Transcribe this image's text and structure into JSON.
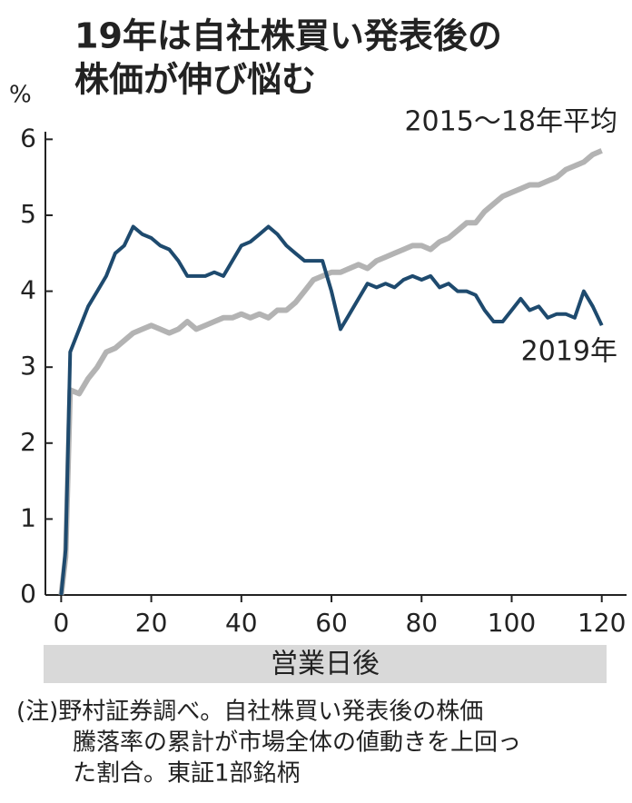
{
  "chart_data": {
    "type": "line",
    "title": [
      "19年は自社株買い発表後の",
      "株価が伸び悩む"
    ],
    "y_label": "%",
    "x_label": "営業日後",
    "note": [
      "(注)野村証券調べ。自社株買い発表後の株価",
      "騰落率の累計が市場全体の値動きを上回っ",
      "た割合。東証1部銘柄"
    ],
    "x": [
      0,
      1,
      2,
      4,
      6,
      8,
      10,
      12,
      14,
      16,
      18,
      20,
      22,
      24,
      26,
      28,
      30,
      32,
      34,
      36,
      38,
      40,
      42,
      44,
      46,
      48,
      50,
      52,
      54,
      56,
      58,
      60,
      62,
      64,
      66,
      68,
      70,
      72,
      74,
      76,
      78,
      80,
      82,
      84,
      86,
      88,
      90,
      92,
      94,
      96,
      98,
      100,
      102,
      104,
      106,
      108,
      110,
      112,
      114,
      116,
      118,
      120
    ],
    "series": [
      {
        "name": "2015～18年平均",
        "color": "#b3b3b3",
        "values": [
          0,
          0.5,
          2.7,
          2.65,
          2.85,
          3.0,
          3.2,
          3.25,
          3.35,
          3.45,
          3.5,
          3.55,
          3.5,
          3.45,
          3.5,
          3.6,
          3.5,
          3.55,
          3.6,
          3.65,
          3.65,
          3.7,
          3.65,
          3.7,
          3.65,
          3.75,
          3.75,
          3.85,
          4.0,
          4.15,
          4.2,
          4.25,
          4.25,
          4.3,
          4.35,
          4.3,
          4.4,
          4.45,
          4.5,
          4.55,
          4.6,
          4.6,
          4.55,
          4.65,
          4.7,
          4.8,
          4.9,
          4.9,
          5.05,
          5.15,
          5.25,
          5.3,
          5.35,
          5.4,
          5.4,
          5.45,
          5.5,
          5.6,
          5.65,
          5.7,
          5.8,
          5.85
        ]
      },
      {
        "name": "2019年",
        "color": "#1e4a6e",
        "values": [
          0,
          0.6,
          3.2,
          3.5,
          3.8,
          4.0,
          4.2,
          4.5,
          4.6,
          4.85,
          4.75,
          4.7,
          4.6,
          4.55,
          4.4,
          4.2,
          4.2,
          4.2,
          4.25,
          4.2,
          4.4,
          4.6,
          4.65,
          4.75,
          4.85,
          4.75,
          4.6,
          4.5,
          4.4,
          4.4,
          4.4,
          4.0,
          3.5,
          3.7,
          3.9,
          4.1,
          4.05,
          4.1,
          4.05,
          4.15,
          4.2,
          4.15,
          4.2,
          4.05,
          4.1,
          4.0,
          4.0,
          3.95,
          3.75,
          3.6,
          3.6,
          3.75,
          3.9,
          3.75,
          3.8,
          3.65,
          3.7,
          3.7,
          3.65,
          4.0,
          3.8,
          3.55
        ]
      }
    ],
    "xlim": [
      -3.5,
      125.5
    ],
    "ylim": [
      0,
      6.1
    ],
    "xticks": [
      0,
      20,
      40,
      60,
      80,
      100,
      120
    ],
    "yticks": [
      0,
      1,
      2,
      3,
      4,
      5,
      6
    ]
  }
}
